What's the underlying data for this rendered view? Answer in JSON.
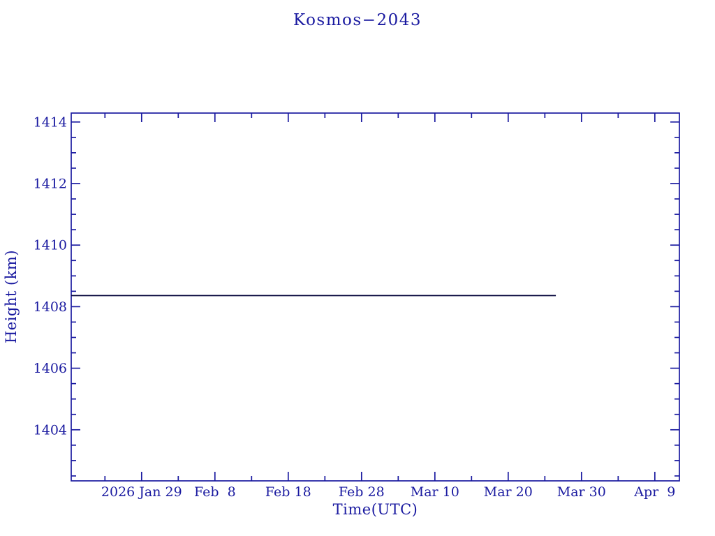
{
  "figure": {
    "title": "Kosmos−2043",
    "background_color": "#ffffff",
    "accent_color": "#1a1aa0",
    "series_line_color": "#0d0d42"
  },
  "chart_data": {
    "type": "line",
    "title": "Kosmos−2043",
    "xlabel": "Time(UTC)",
    "ylabel": "Height (km)",
    "x_unit": "days since 2026 Jan 29",
    "xlim": [
      -9.6,
      73.35
    ],
    "ylim": [
      1402.34,
      1414.29
    ],
    "x_major_ticks": [
      {
        "pos": 0,
        "label": "2026 Jan 29"
      },
      {
        "pos": 10,
        "label": "Feb  8"
      },
      {
        "pos": 20,
        "label": "Feb 18"
      },
      {
        "pos": 30,
        "label": "Feb 28"
      },
      {
        "pos": 40,
        "label": "Mar 10"
      },
      {
        "pos": 50,
        "label": "Mar 20"
      },
      {
        "pos": 60,
        "label": "Mar 30"
      },
      {
        "pos": 70,
        "label": "Apr  9"
      }
    ],
    "x_minor_step": 5,
    "y_major_ticks": [
      1404,
      1406,
      1408,
      1410,
      1412,
      1414
    ],
    "y_minor_step": 0.5,
    "grid": false,
    "legend": null,
    "ticks_direction": "in",
    "ticks_on_all_sides": true,
    "series": [
      {
        "name": "height",
        "color": "#0d0d42",
        "points": [
          [
            -9.6,
            1408.36
          ],
          [
            56.5,
            1408.36
          ]
        ]
      }
    ]
  }
}
